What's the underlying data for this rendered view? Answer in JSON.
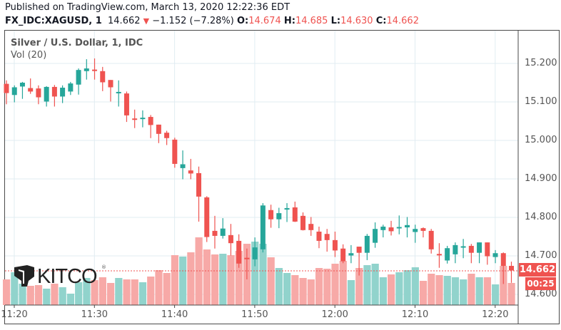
{
  "header": {
    "published": "Published on TradingView.com, March 13, 2020 12:22:36 EDT",
    "symbol": "FX_IDC:XAGUSD, 1",
    "last": "14.662",
    "change": "−1.152 (−7.28%)",
    "o_label": "O:",
    "o": "14.674",
    "h_label": "H:",
    "h": "14.685",
    "l_label": "L:",
    "l": "14.630",
    "c_label": "C:",
    "c": "14.662"
  },
  "chart": {
    "title": "Silver / U.S. Dollar, 1, IDC",
    "volume_label": "Vol (20)",
    "price_ticks": [
      "15.200",
      "15.100",
      "15.000",
      "14.900",
      "14.800",
      "14.700",
      "14.600"
    ],
    "time_ticks": [
      "11:20",
      "11:30",
      "11:40",
      "11:50",
      "12:00",
      "12:10",
      "12:20"
    ],
    "last_price_label": "14.662",
    "countdown": "00:25",
    "logo": "KITCO"
  },
  "colors": {
    "up": "#26a69a",
    "down": "#ef5350",
    "up_vol": "#91d3cc",
    "down_vol": "#f7a9a7",
    "grid": "#e1ecf2"
  },
  "chart_data": {
    "type": "candlestick",
    "start_time": "11:19",
    "interval_min": 1,
    "ylim": [
      14.565,
      15.26
    ],
    "candles": [
      [
        15.147,
        15.156,
        15.094,
        15.123
      ],
      [
        15.118,
        15.143,
        15.099,
        15.138
      ],
      [
        15.14,
        15.152,
        15.108,
        15.15
      ],
      [
        15.136,
        15.161,
        15.121,
        15.127
      ],
      [
        15.135,
        15.143,
        15.094,
        15.112
      ],
      [
        15.101,
        15.141,
        15.088,
        15.139
      ],
      [
        15.139,
        15.144,
        15.088,
        15.114
      ],
      [
        15.114,
        15.143,
        15.097,
        15.137
      ],
      [
        15.127,
        15.152,
        15.118,
        15.148
      ],
      [
        15.145,
        15.187,
        15.119,
        15.183
      ],
      [
        15.18,
        15.211,
        15.158,
        15.187
      ],
      [
        15.184,
        15.213,
        15.158,
        15.183
      ],
      [
        15.18,
        15.191,
        15.128,
        15.151
      ],
      [
        15.157,
        15.157,
        15.101,
        15.138
      ],
      [
        15.125,
        15.156,
        15.088,
        15.126
      ],
      [
        15.122,
        15.127,
        15.048,
        15.065
      ],
      [
        15.057,
        15.08,
        15.032,
        15.056
      ],
      [
        15.058,
        15.078,
        15.034,
        15.059
      ],
      [
        15.061,
        15.066,
        15.006,
        15.04
      ],
      [
        15.041,
        15.041,
        14.993,
        15.017
      ],
      [
        15.02,
        15.025,
        14.988,
        15.006
      ],
      [
        15.002,
        15.007,
        14.929,
        14.939
      ],
      [
        14.928,
        14.974,
        14.899,
        14.938
      ],
      [
        14.922,
        14.952,
        14.899,
        14.914
      ],
      [
        14.915,
        14.932,
        14.789,
        14.854
      ],
      [
        14.852,
        14.855,
        14.736,
        14.749
      ],
      [
        14.765,
        14.804,
        14.719,
        14.752
      ],
      [
        14.752,
        14.798,
        14.745,
        14.771
      ],
      [
        14.754,
        14.783,
        14.701,
        14.733
      ],
      [
        14.739,
        14.756,
        14.669,
        14.68
      ],
      [
        14.695,
        14.719,
        14.639,
        14.694
      ],
      [
        14.691,
        14.748,
        14.673,
        14.722
      ],
      [
        14.717,
        14.837,
        14.709,
        14.831
      ],
      [
        14.819,
        14.833,
        14.773,
        14.795
      ],
      [
        14.795,
        14.825,
        14.772,
        14.811
      ],
      [
        14.823,
        14.837,
        14.788,
        14.824
      ],
      [
        14.826,
        14.841,
        14.788,
        14.789
      ],
      [
        14.804,
        14.813,
        14.766,
        14.767
      ],
      [
        14.783,
        14.801,
        14.752,
        14.767
      ],
      [
        14.763,
        14.776,
        14.72,
        14.739
      ],
      [
        14.757,
        14.77,
        14.711,
        14.741
      ],
      [
        14.741,
        14.763,
        14.697,
        14.714
      ],
      [
        14.719,
        14.73,
        14.681,
        14.686
      ],
      [
        14.701,
        14.728,
        14.681,
        14.707
      ],
      [
        14.724,
        14.724,
        14.649,
        14.708
      ],
      [
        14.708,
        14.757,
        14.689,
        14.752
      ],
      [
        14.734,
        14.787,
        14.721,
        14.77
      ],
      [
        14.767,
        14.781,
        14.748,
        14.776
      ],
      [
        14.774,
        14.791,
        14.753,
        14.764
      ],
      [
        14.774,
        14.805,
        14.756,
        14.775
      ],
      [
        14.774,
        14.801,
        14.748,
        14.78
      ],
      [
        14.762,
        14.781,
        14.734,
        14.77
      ],
      [
        14.772,
        14.774,
        14.748,
        14.765
      ],
      [
        14.765,
        14.77,
        14.706,
        14.717
      ],
      [
        14.705,
        14.733,
        14.669,
        14.704
      ],
      [
        14.688,
        14.726,
        14.68,
        14.72
      ],
      [
        14.704,
        14.735,
        14.681,
        14.728
      ],
      [
        14.724,
        14.744,
        14.694,
        14.725
      ],
      [
        14.726,
        14.731,
        14.681,
        14.708
      ],
      [
        14.708,
        14.735,
        14.681,
        14.735
      ],
      [
        14.735,
        14.735,
        14.677,
        14.699
      ],
      [
        14.697,
        14.715,
        14.681,
        14.707
      ],
      [
        14.707,
        14.709,
        14.627,
        14.674
      ],
      [
        14.674,
        14.685,
        14.63,
        14.662
      ]
    ],
    "volume": [
      36,
      46,
      30,
      27,
      28,
      23,
      30,
      25,
      16,
      32,
      38,
      35,
      39,
      31,
      38,
      36,
      36,
      32,
      40,
      49,
      45,
      70,
      68,
      74,
      95,
      78,
      71,
      72,
      70,
      76,
      86,
      89,
      86,
      67,
      52,
      45,
      42,
      38,
      36,
      52,
      51,
      58,
      62,
      35,
      52,
      56,
      58,
      39,
      43,
      46,
      49,
      53,
      34,
      44,
      42,
      41,
      39,
      36,
      44,
      39,
      39,
      29,
      55,
      31
    ],
    "volume_max": 200
  }
}
